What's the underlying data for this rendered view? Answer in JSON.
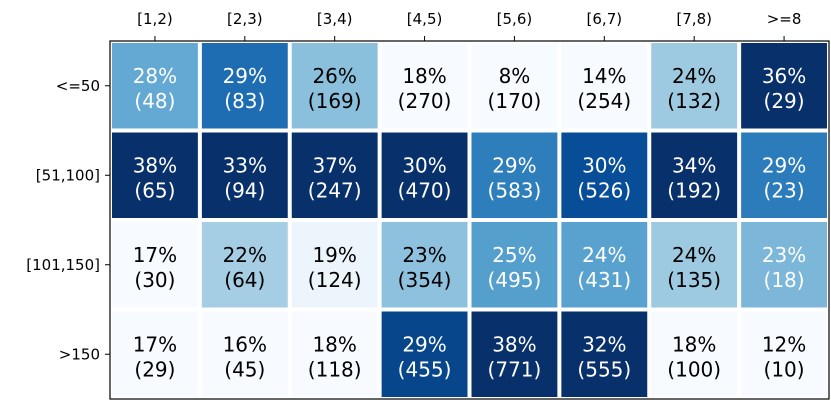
{
  "chart_data": {
    "type": "heatmap",
    "title": "",
    "xlabel": "",
    "ylabel": "",
    "x_categories": [
      "[1,2)",
      "[2,3)",
      "[3,4)",
      "[4,5)",
      "[5,6)",
      "[6,7)",
      "[7,8)",
      ">=8"
    ],
    "y_categories": [
      "<=50",
      "[51,100]",
      "[101,150]",
      ">150"
    ],
    "percent_values": [
      [
        28,
        29,
        26,
        18,
        8,
        14,
        24,
        36
      ],
      [
        38,
        33,
        37,
        30,
        29,
        30,
        34,
        29
      ],
      [
        17,
        22,
        19,
        23,
        25,
        24,
        24,
        23
      ],
      [
        17,
        16,
        18,
        29,
        38,
        32,
        18,
        12
      ]
    ],
    "count_values": [
      [
        48,
        83,
        169,
        270,
        170,
        254,
        132,
        29
      ],
      [
        65,
        94,
        247,
        470,
        583,
        526,
        192,
        23
      ],
      [
        30,
        64,
        124,
        354,
        495,
        431,
        135,
        18
      ],
      [
        29,
        45,
        118,
        455,
        771,
        555,
        100,
        10
      ]
    ],
    "cell_text_format": "{pct}%\n({count})",
    "colormap": "Blues",
    "color_scale": "column-normalized",
    "x_axis_position": "top",
    "grid": false,
    "colors": {
      "cell_border": "#ffffff",
      "light_text": "#ffffff",
      "dark_text": "#000000"
    }
  }
}
